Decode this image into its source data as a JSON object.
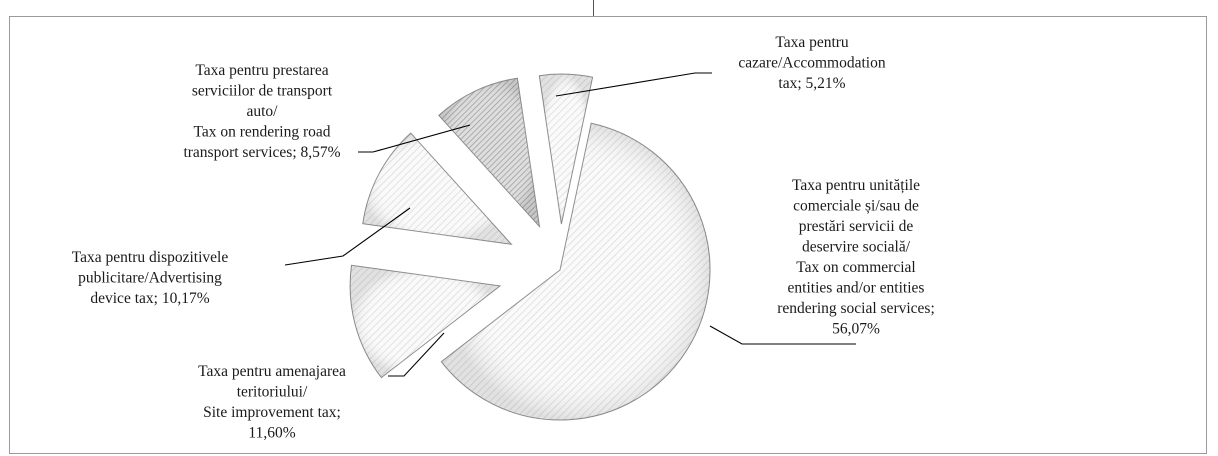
{
  "chart_data": {
    "type": "pie",
    "title": "",
    "slices": [
      {
        "label_lines": [
          "Taxa pentru unitățile",
          "comerciale și/sau de",
          "prestări servicii de",
          "deservire socială/",
          "Tax on commercial",
          "entities and/or entities",
          "rendering social services;",
          "56,07%"
        ],
        "value": 56.07
      },
      {
        "label_lines": [
          "Taxa pentru amenajarea",
          "teritoriului/",
          "Site improvement tax;",
          "11,60%"
        ],
        "value": 11.6
      },
      {
        "label_lines": [
          "Taxa pentru dispozitivele",
          "publicitare/Advertising",
          "device tax; 10,17%"
        ],
        "value": 10.17
      },
      {
        "label_lines": [
          "Taxa pentru prestarea",
          "serviciilor de transport",
          "auto/",
          "Tax on rendering road",
          "transport services; 8,57%"
        ],
        "value": 8.57
      },
      {
        "label_lines": [
          "Taxa pentru",
          "cazare/Accommodation",
          "tax; 5,21%"
        ],
        "value": 5.21
      }
    ],
    "colors": {
      "fill_light": "#f2f2f2",
      "fill_dark": "#b4b4b4",
      "stroke": "#8f8f8f",
      "leader": "#000000"
    }
  }
}
